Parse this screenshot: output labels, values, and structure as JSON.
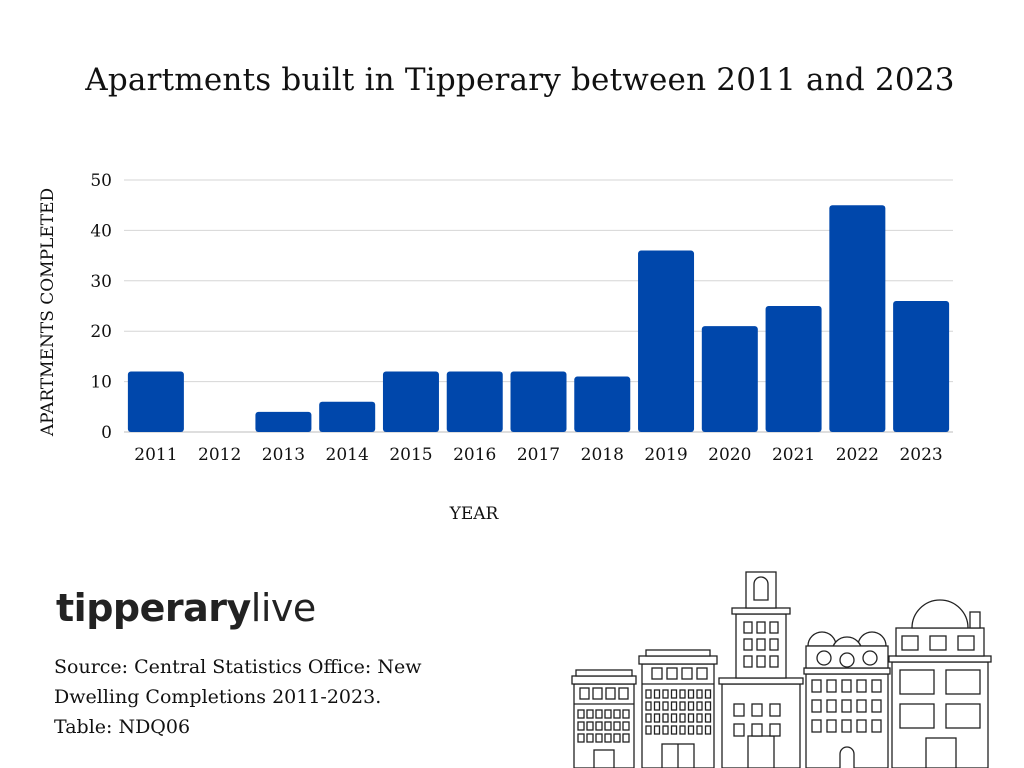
{
  "chart_data": {
    "type": "bar",
    "title": "Apartments built in Tipperary between 2011 and 2023",
    "xlabel": "YEAR",
    "ylabel": "APARTMENTS COMPLETED",
    "categories": [
      "2011",
      "2012",
      "2013",
      "2014",
      "2015",
      "2016",
      "2017",
      "2018",
      "2019",
      "2020",
      "2021",
      "2022",
      "2023"
    ],
    "values": [
      12,
      0,
      4,
      6,
      12,
      12,
      12,
      11,
      36,
      21,
      25,
      45,
      26
    ],
    "ylim": [
      0,
      50
    ],
    "yticks": [
      0,
      10,
      20,
      30,
      40,
      50
    ],
    "grid": true,
    "bar_color": "#0047AB",
    "grid_color": "#d6d6d6"
  },
  "brand": {
    "bold": "tipperary",
    "light": "live"
  },
  "source": {
    "lines": [
      "Source: Central Statistics Office: New",
      "Dwelling Completions 2011-2023.",
      "Table: NDQ06"
    ]
  }
}
